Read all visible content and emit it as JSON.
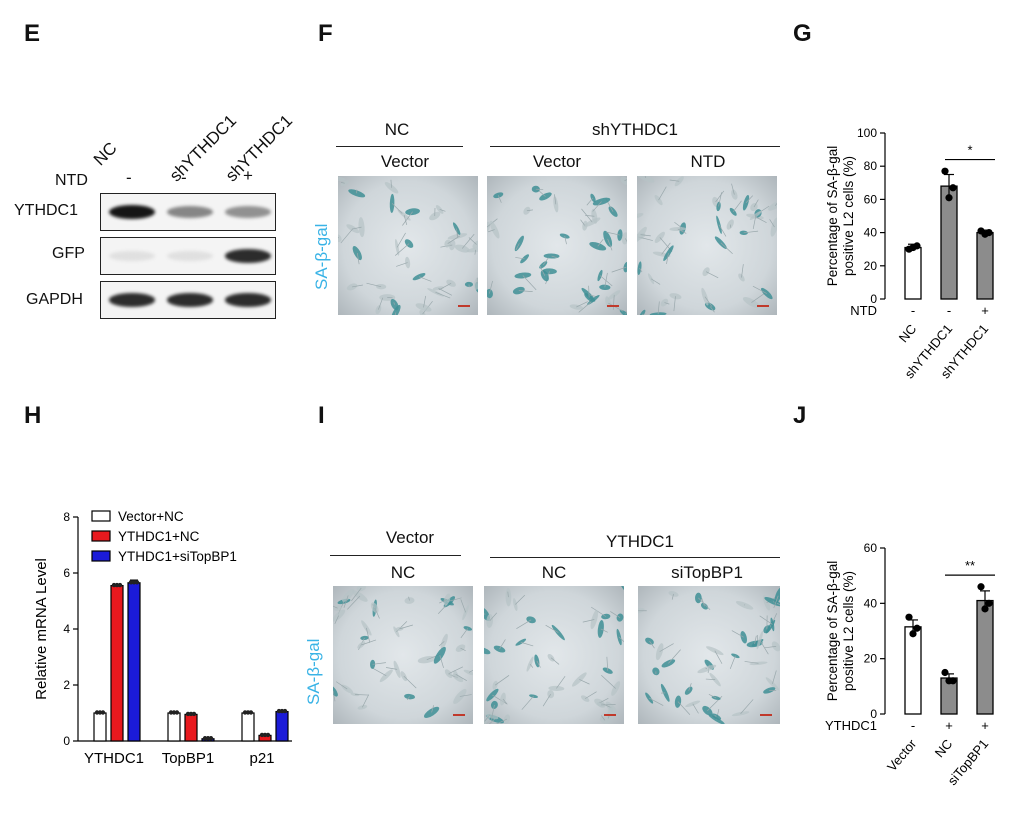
{
  "panels": {
    "E": "E",
    "F": "F",
    "G": "G",
    "H": "H",
    "I": "I",
    "J": "J"
  },
  "blot": {
    "lanes": [
      "NC",
      "shYTHDC1",
      "shYTHDC1"
    ],
    "ntd_label": "NTD",
    "ntd_signs": [
      "-",
      "-",
      "+"
    ],
    "bands": [
      {
        "name": "YTHDC1",
        "intensity": [
          0.95,
          0.45,
          0.4
        ]
      },
      {
        "name": "GFP",
        "intensity": [
          0.05,
          0.05,
          0.85
        ]
      },
      {
        "name": "GAPDH",
        "intensity": [
          0.85,
          0.85,
          0.85
        ]
      }
    ]
  },
  "stainF": {
    "groups": [
      "NC",
      "shYTHDC1"
    ],
    "subs": [
      "Vector",
      "Vector",
      "NTD"
    ],
    "side": "SA-β-gal",
    "levels": [
      0.3,
      0.75,
      0.35
    ]
  },
  "stainI": {
    "groups": [
      "Vector",
      "YTHDC1"
    ],
    "subs": [
      "NC",
      "NC",
      "siTopBP1"
    ],
    "side": "SA-β-gal",
    "levels": [
      0.35,
      0.3,
      0.7
    ]
  },
  "colors": {
    "accent": "#39b3e6",
    "white_bar": "#ffffff",
    "gray_bar": "#8c8c8c",
    "red": "#e8191e",
    "blue": "#1b1bd8",
    "scalebar": "#c0392b"
  },
  "chart_data": [
    {
      "id": "G",
      "type": "bar",
      "ylabel_lines": [
        "Percentage of SA-β-gal",
        "positive L2 cells  (%)"
      ],
      "ylim": [
        0,
        100
      ],
      "yticks": [
        0,
        20,
        40,
        60,
        80,
        100
      ],
      "row_label": "NTD",
      "signs": [
        "-",
        "-",
        "+"
      ],
      "categories": [
        "NC",
        "shYTHDC1",
        "shYTHDC1"
      ],
      "values": [
        31,
        68,
        40
      ],
      "errors": [
        2,
        7,
        1.5
      ],
      "points": [
        [
          30,
          31,
          32
        ],
        [
          77,
          61,
          67
        ],
        [
          41,
          39,
          40
        ]
      ],
      "fills": [
        "#ffffff",
        "#8c8c8c",
        "#8c8c8c"
      ],
      "sig": {
        "from": 1,
        "to": 2,
        "label": "*"
      }
    },
    {
      "id": "H",
      "type": "bar",
      "ylabel": "Relative mRNA Level",
      "ylim": [
        0,
        8
      ],
      "yticks": [
        0,
        2,
        4,
        6,
        8
      ],
      "categories": [
        "YTHDC1",
        "TopBP1",
        "p21"
      ],
      "series": [
        {
          "name": "Vector+NC",
          "color": "#ffffff",
          "values": [
            1.0,
            1.0,
            1.0
          ],
          "errors": [
            0.04,
            0.05,
            0.06
          ]
        },
        {
          "name": "YTHDC1+NC",
          "color": "#e8191e",
          "values": [
            5.55,
            0.95,
            0.2
          ],
          "errors": [
            0.05,
            0.04,
            0.03
          ]
        },
        {
          "name": "YTHDC1+siTopBP1",
          "color": "#1b1bd8",
          "values": [
            5.65,
            0.08,
            1.05
          ],
          "errors": [
            0.1,
            0.01,
            0.04
          ]
        }
      ]
    },
    {
      "id": "J",
      "type": "bar",
      "ylabel_lines": [
        "Percentage of SA-β-gal",
        "positive L2 cells  (%)"
      ],
      "ylim": [
        0,
        60
      ],
      "yticks": [
        0,
        20,
        40,
        60
      ],
      "row_label": "YTHDC1",
      "signs": [
        "-",
        "+",
        "+"
      ],
      "categories": [
        "Vector",
        "NC",
        "siTopBP1"
      ],
      "values": [
        31.5,
        13,
        41
      ],
      "errors": [
        2.5,
        1.5,
        3.5
      ],
      "points": [
        [
          35,
          29,
          31
        ],
        [
          15,
          12,
          12
        ],
        [
          46,
          38,
          40
        ]
      ],
      "fills": [
        "#ffffff",
        "#8c8c8c",
        "#8c8c8c"
      ],
      "sig": {
        "from": 1,
        "to": 2,
        "label": "**"
      }
    }
  ]
}
